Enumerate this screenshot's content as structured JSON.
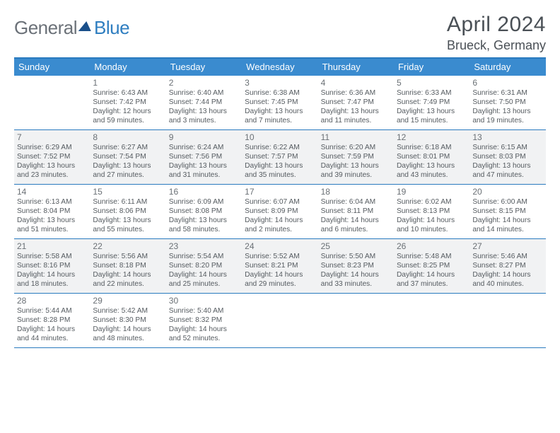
{
  "logo": {
    "text1": "General",
    "text2": "Blue"
  },
  "title": {
    "month": "April 2024",
    "location": "Brueck, Germany"
  },
  "colors": {
    "header_bg": "#3a8bcf",
    "border": "#2a7bbf",
    "alt_row_bg": "#f1f2f3",
    "text": "#555b60",
    "title_text": "#4a5056",
    "logo_gray": "#6b7178",
    "logo_blue": "#2f7ec0"
  },
  "dayHeaders": [
    "Sunday",
    "Monday",
    "Tuesday",
    "Wednesday",
    "Thursday",
    "Friday",
    "Saturday"
  ],
  "weeks": [
    {
      "alt": false,
      "days": [
        {
          "num": "",
          "sunrise": "",
          "sunset": "",
          "daylight": ""
        },
        {
          "num": "1",
          "sunrise": "Sunrise: 6:43 AM",
          "sunset": "Sunset: 7:42 PM",
          "daylight": "Daylight: 12 hours and 59 minutes."
        },
        {
          "num": "2",
          "sunrise": "Sunrise: 6:40 AM",
          "sunset": "Sunset: 7:44 PM",
          "daylight": "Daylight: 13 hours and 3 minutes."
        },
        {
          "num": "3",
          "sunrise": "Sunrise: 6:38 AM",
          "sunset": "Sunset: 7:45 PM",
          "daylight": "Daylight: 13 hours and 7 minutes."
        },
        {
          "num": "4",
          "sunrise": "Sunrise: 6:36 AM",
          "sunset": "Sunset: 7:47 PM",
          "daylight": "Daylight: 13 hours and 11 minutes."
        },
        {
          "num": "5",
          "sunrise": "Sunrise: 6:33 AM",
          "sunset": "Sunset: 7:49 PM",
          "daylight": "Daylight: 13 hours and 15 minutes."
        },
        {
          "num": "6",
          "sunrise": "Sunrise: 6:31 AM",
          "sunset": "Sunset: 7:50 PM",
          "daylight": "Daylight: 13 hours and 19 minutes."
        }
      ]
    },
    {
      "alt": true,
      "days": [
        {
          "num": "7",
          "sunrise": "Sunrise: 6:29 AM",
          "sunset": "Sunset: 7:52 PM",
          "daylight": "Daylight: 13 hours and 23 minutes."
        },
        {
          "num": "8",
          "sunrise": "Sunrise: 6:27 AM",
          "sunset": "Sunset: 7:54 PM",
          "daylight": "Daylight: 13 hours and 27 minutes."
        },
        {
          "num": "9",
          "sunrise": "Sunrise: 6:24 AM",
          "sunset": "Sunset: 7:56 PM",
          "daylight": "Daylight: 13 hours and 31 minutes."
        },
        {
          "num": "10",
          "sunrise": "Sunrise: 6:22 AM",
          "sunset": "Sunset: 7:57 PM",
          "daylight": "Daylight: 13 hours and 35 minutes."
        },
        {
          "num": "11",
          "sunrise": "Sunrise: 6:20 AM",
          "sunset": "Sunset: 7:59 PM",
          "daylight": "Daylight: 13 hours and 39 minutes."
        },
        {
          "num": "12",
          "sunrise": "Sunrise: 6:18 AM",
          "sunset": "Sunset: 8:01 PM",
          "daylight": "Daylight: 13 hours and 43 minutes."
        },
        {
          "num": "13",
          "sunrise": "Sunrise: 6:15 AM",
          "sunset": "Sunset: 8:03 PM",
          "daylight": "Daylight: 13 hours and 47 minutes."
        }
      ]
    },
    {
      "alt": false,
      "days": [
        {
          "num": "14",
          "sunrise": "Sunrise: 6:13 AM",
          "sunset": "Sunset: 8:04 PM",
          "daylight": "Daylight: 13 hours and 51 minutes."
        },
        {
          "num": "15",
          "sunrise": "Sunrise: 6:11 AM",
          "sunset": "Sunset: 8:06 PM",
          "daylight": "Daylight: 13 hours and 55 minutes."
        },
        {
          "num": "16",
          "sunrise": "Sunrise: 6:09 AM",
          "sunset": "Sunset: 8:08 PM",
          "daylight": "Daylight: 13 hours and 58 minutes."
        },
        {
          "num": "17",
          "sunrise": "Sunrise: 6:07 AM",
          "sunset": "Sunset: 8:09 PM",
          "daylight": "Daylight: 14 hours and 2 minutes."
        },
        {
          "num": "18",
          "sunrise": "Sunrise: 6:04 AM",
          "sunset": "Sunset: 8:11 PM",
          "daylight": "Daylight: 14 hours and 6 minutes."
        },
        {
          "num": "19",
          "sunrise": "Sunrise: 6:02 AM",
          "sunset": "Sunset: 8:13 PM",
          "daylight": "Daylight: 14 hours and 10 minutes."
        },
        {
          "num": "20",
          "sunrise": "Sunrise: 6:00 AM",
          "sunset": "Sunset: 8:15 PM",
          "daylight": "Daylight: 14 hours and 14 minutes."
        }
      ]
    },
    {
      "alt": true,
      "days": [
        {
          "num": "21",
          "sunrise": "Sunrise: 5:58 AM",
          "sunset": "Sunset: 8:16 PM",
          "daylight": "Daylight: 14 hours and 18 minutes."
        },
        {
          "num": "22",
          "sunrise": "Sunrise: 5:56 AM",
          "sunset": "Sunset: 8:18 PM",
          "daylight": "Daylight: 14 hours and 22 minutes."
        },
        {
          "num": "23",
          "sunrise": "Sunrise: 5:54 AM",
          "sunset": "Sunset: 8:20 PM",
          "daylight": "Daylight: 14 hours and 25 minutes."
        },
        {
          "num": "24",
          "sunrise": "Sunrise: 5:52 AM",
          "sunset": "Sunset: 8:21 PM",
          "daylight": "Daylight: 14 hours and 29 minutes."
        },
        {
          "num": "25",
          "sunrise": "Sunrise: 5:50 AM",
          "sunset": "Sunset: 8:23 PM",
          "daylight": "Daylight: 14 hours and 33 minutes."
        },
        {
          "num": "26",
          "sunrise": "Sunrise: 5:48 AM",
          "sunset": "Sunset: 8:25 PM",
          "daylight": "Daylight: 14 hours and 37 minutes."
        },
        {
          "num": "27",
          "sunrise": "Sunrise: 5:46 AM",
          "sunset": "Sunset: 8:27 PM",
          "daylight": "Daylight: 14 hours and 40 minutes."
        }
      ]
    },
    {
      "alt": false,
      "days": [
        {
          "num": "28",
          "sunrise": "Sunrise: 5:44 AM",
          "sunset": "Sunset: 8:28 PM",
          "daylight": "Daylight: 14 hours and 44 minutes."
        },
        {
          "num": "29",
          "sunrise": "Sunrise: 5:42 AM",
          "sunset": "Sunset: 8:30 PM",
          "daylight": "Daylight: 14 hours and 48 minutes."
        },
        {
          "num": "30",
          "sunrise": "Sunrise: 5:40 AM",
          "sunset": "Sunset: 8:32 PM",
          "daylight": "Daylight: 14 hours and 52 minutes."
        },
        {
          "num": "",
          "sunrise": "",
          "sunset": "",
          "daylight": ""
        },
        {
          "num": "",
          "sunrise": "",
          "sunset": "",
          "daylight": ""
        },
        {
          "num": "",
          "sunrise": "",
          "sunset": "",
          "daylight": ""
        },
        {
          "num": "",
          "sunrise": "",
          "sunset": "",
          "daylight": ""
        }
      ]
    }
  ]
}
